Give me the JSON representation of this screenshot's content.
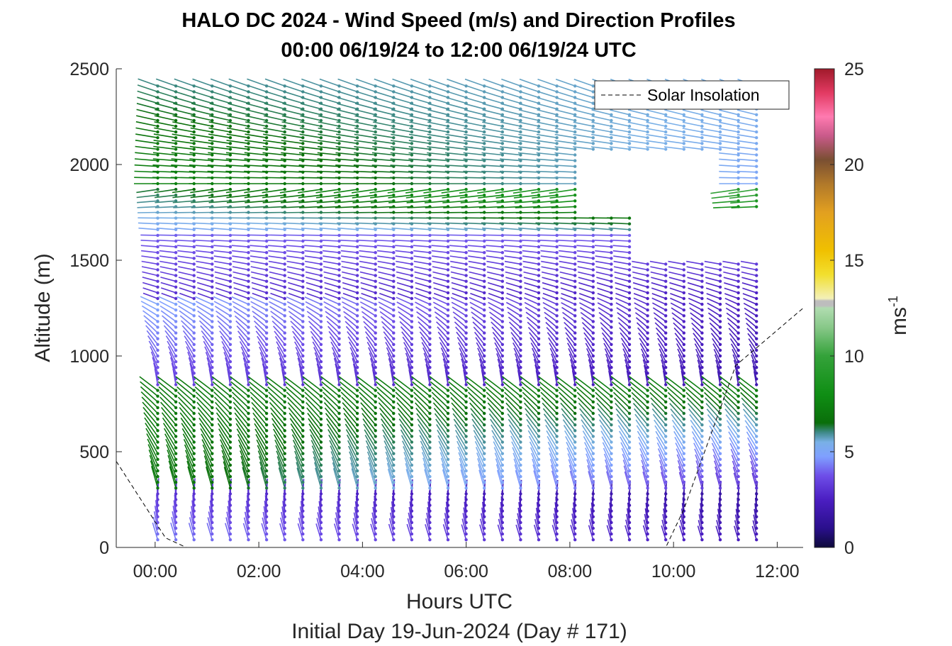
{
  "chart_data": {
    "type": "wind-barb-profile",
    "title": "HALO DC 2024 - Wind Speed (m/s) and Direction Profiles",
    "subtitle": "00:00 06/19/24 to 12:00 06/19/24  UTC",
    "xlabel": "Hours UTC",
    "xlabel2": "Initial Day 19-Jun-2024 (Day # 171)",
    "ylabel": "Altitude (m)",
    "xlim": [
      -0.75,
      12.5
    ],
    "ylim": [
      0,
      2500
    ],
    "x_ticks": [
      0,
      2,
      4,
      6,
      8,
      10,
      12
    ],
    "x_tick_labels": [
      "00:00",
      "02:00",
      "04:00",
      "06:00",
      "08:00",
      "10:00",
      "12:00"
    ],
    "y_ticks": [
      0,
      500,
      1000,
      1500,
      2000,
      2500
    ],
    "y_tick_labels": [
      "0",
      "500",
      "1000",
      "1500",
      "2000",
      "2500"
    ],
    "colorbar": {
      "label": "ms",
      "label_exponent": "-1",
      "range": [
        0,
        25
      ],
      "ticks": [
        0,
        5,
        10,
        15,
        20,
        25
      ],
      "tick_labels": [
        "0",
        "5",
        "10",
        "15",
        "20",
        "25"
      ]
    },
    "legend": {
      "entries": [
        "Solar Insolation"
      ],
      "position": "top-right"
    },
    "profile_times_hours": [
      0.05,
      0.4,
      0.75,
      1.1,
      1.45,
      1.8,
      2.15,
      2.5,
      2.85,
      3.2,
      3.55,
      3.9,
      4.25,
      4.6,
      4.95,
      5.3,
      5.65,
      6.0,
      6.35,
      6.7,
      7.05,
      7.4,
      7.75,
      8.1,
      8.45,
      8.8,
      9.15,
      9.5,
      9.85,
      10.2,
      10.55,
      10.9,
      11.25,
      11.6
    ],
    "altitude_step_m": 30,
    "altitude_max_by_time_m": [
      2420,
      2420,
      2420,
      2420,
      2420,
      2420,
      2420,
      2420,
      2420,
      2420,
      2420,
      2420,
      2420,
      2420,
      2420,
      2420,
      2420,
      2420,
      2420,
      2420,
      2420,
      2420,
      2420,
      2420,
      2420,
      2420,
      2420,
      2420,
      2420,
      2420,
      2420,
      2420,
      2420,
      2420
    ],
    "wind_profile_layers": [
      {
        "z": [
          0,
          300
        ],
        "speed_start": [
          4.5,
          3.0
        ],
        "speed_end": [
          2.5,
          1.5
        ],
        "dir_deg": [
          200,
          175
        ]
      },
      {
        "z": [
          300,
          850
        ],
        "speed_start": [
          7.0,
          7.0
        ],
        "speed_end": [
          3.0,
          7.5
        ],
        "dir_deg": [
          195,
          235
        ]
      },
      {
        "z": [
          850,
          1300
        ],
        "speed_start": [
          3.5,
          5.0
        ],
        "speed_end": [
          2.0,
          2.5
        ],
        "dir_deg": [
          190,
          250
        ]
      },
      {
        "z": [
          1300,
          1650
        ],
        "speed_start": [
          3.0,
          4.0
        ],
        "speed_end": [
          2.5,
          4.0
        ],
        "dir_deg": [
          250,
          270
        ]
      },
      {
        "z": [
          1650,
          1900
        ],
        "speed_start": [
          5.0,
          6.5
        ],
        "speed_end": [
          6.0,
          10.5
        ],
        "dir_deg": [
          265,
          280
        ]
      },
      {
        "z": [
          1900,
          2420
        ],
        "speed_start": [
          7.5,
          6.0
        ],
        "speed_end": [
          5.0,
          5.5
        ],
        "dir_deg": [
          270,
          250
        ]
      }
    ],
    "data_gaps": [
      {
        "t": [
          8.2,
          11.0
        ],
        "z": [
          1750,
          2050
        ]
      },
      {
        "t": [
          9.5,
          11.7
        ],
        "z": [
          1500,
          1750
        ]
      }
    ],
    "solar_insolation_profile": {
      "t": [
        -0.75,
        0.2,
        0.6,
        9.85,
        10.2,
        11.2,
        12.5
      ],
      "relative": [
        0.18,
        0.02,
        0.0,
        0.0,
        0.08,
        0.38,
        0.5
      ]
    }
  }
}
